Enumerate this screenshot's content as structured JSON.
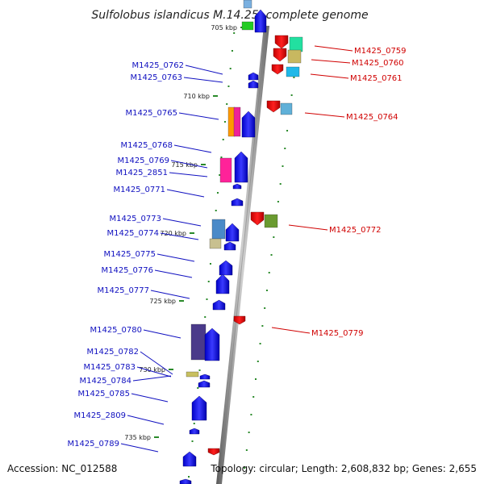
{
  "title": "Sulfolobus islandicus M.14.25, complete genome",
  "accession": "Accession: NC_012588",
  "summary": "Topology: circular; Length: 2,608,832 bp; Genes: 2,655",
  "colors": {
    "forward": "#1414f0",
    "reverse": "#ee0000",
    "label_blue": "#1010c0",
    "label_red": "#d00000",
    "dot_green": "#2a8a2a"
  },
  "scale_labels": [
    "705 kbp",
    "710 kbp",
    "715 kbp",
    "720 kbp",
    "725 kbp",
    "730 kbp",
    "735 kbp"
  ],
  "genes": [
    "M1425_0762",
    "M1425_0763",
    "M1425_0765",
    "M1425_0768",
    "M1425_0769",
    "M1425_2851",
    "M1425_0771",
    "M1425_0773",
    "M1425_0774",
    "M1425_0775",
    "M1425_0776",
    "M1425_0777",
    "M1425_0780",
    "M1425_0782",
    "M1425_0783",
    "M1425_0784",
    "M1425_0785",
    "M1425_2809",
    "M1425_0789",
    "M1425_0759",
    "M1425_0760",
    "M1425_0761",
    "M1425_0764",
    "M1425_0772",
    "M1425_0779"
  ]
}
